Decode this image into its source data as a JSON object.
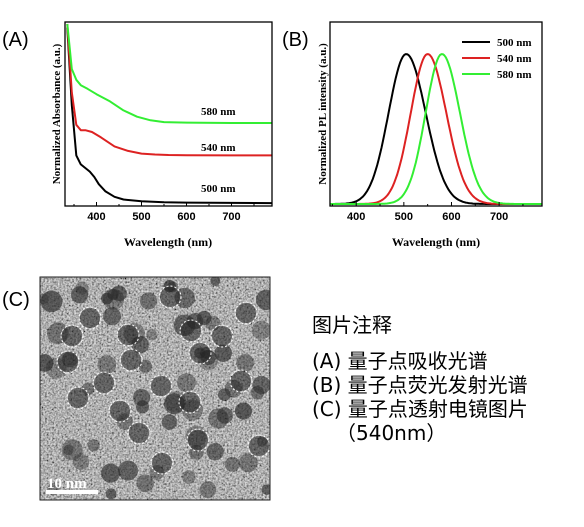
{
  "panels": {
    "a": {
      "label": "(A)"
    },
    "b": {
      "label": "(B)"
    },
    "c": {
      "label": "(C)"
    }
  },
  "chart_data": [
    {
      "type": "line",
      "panel": "(A)",
      "title": "",
      "xlabel": "Wavelength (nm)",
      "ylabel": "Normalized Absorbance (a.u.)",
      "xlim": [
        330,
        790
      ],
      "ylim": [
        0,
        1.0
      ],
      "xticks": [
        400,
        500,
        600,
        700
      ],
      "y_tick_labels": false,
      "grid": false,
      "series": [
        {
          "name": "500 nm",
          "color": "#000000",
          "x": [
            335,
            345,
            355,
            365,
            375,
            385,
            395,
            405,
            420,
            440,
            460,
            500,
            550,
            600,
            700,
            790
          ],
          "y": [
            0.98,
            0.55,
            0.27,
            0.22,
            0.2,
            0.18,
            0.15,
            0.11,
            0.07,
            0.04,
            0.025,
            0.015,
            0.01,
            0.008,
            0.006,
            0.005
          ]
        },
        {
          "name": "540 nm",
          "color": "#dd2222",
          "x": [
            335,
            345,
            355,
            365,
            375,
            390,
            410,
            440,
            470,
            500,
            530,
            560,
            600,
            700,
            790
          ],
          "y": [
            1.0,
            0.62,
            0.44,
            0.41,
            0.41,
            0.4,
            0.37,
            0.32,
            0.295,
            0.28,
            0.275,
            0.272,
            0.271,
            0.27,
            0.27
          ]
        },
        {
          "name": "580 nm",
          "color": "#33ee33",
          "x": [
            335,
            345,
            355,
            365,
            380,
            400,
            430,
            460,
            490,
            520,
            550,
            600,
            700,
            790
          ],
          "y": [
            1.0,
            0.75,
            0.69,
            0.66,
            0.64,
            0.61,
            0.57,
            0.52,
            0.485,
            0.465,
            0.455,
            0.452,
            0.45,
            0.45
          ]
        }
      ],
      "annotations": [
        "580 nm",
        "540 nm",
        "500 nm"
      ]
    },
    {
      "type": "line",
      "panel": "(B)",
      "title": "",
      "xlabel": "Wavelength (nm)",
      "ylabel": "Normalized PL intensity (a.u.)",
      "xlim": [
        345,
        790
      ],
      "ylim": [
        0,
        1.0
      ],
      "xticks": [
        400,
        500,
        600,
        700
      ],
      "y_tick_labels": false,
      "grid": false,
      "legend": "top-right",
      "series": [
        {
          "name": "500 nm",
          "color": "#000000",
          "peak": 505,
          "fwhm": 92
        },
        {
          "name": "540 nm",
          "color": "#dd2222",
          "peak": 550,
          "fwhm": 88
        },
        {
          "name": "580 nm",
          "color": "#33ee33",
          "peak": 580,
          "fwhm": 85
        }
      ]
    }
  ],
  "tem": {
    "scale_bar_label": "10 nm"
  },
  "caption": {
    "title": "图片注释",
    "lines": [
      "(A) 量子点吸收光谱",
      "(B) 量子点荧光发射光谱",
      "(C) 量子点透射电镜图片"
    ],
    "continuation": "（540nm）"
  }
}
